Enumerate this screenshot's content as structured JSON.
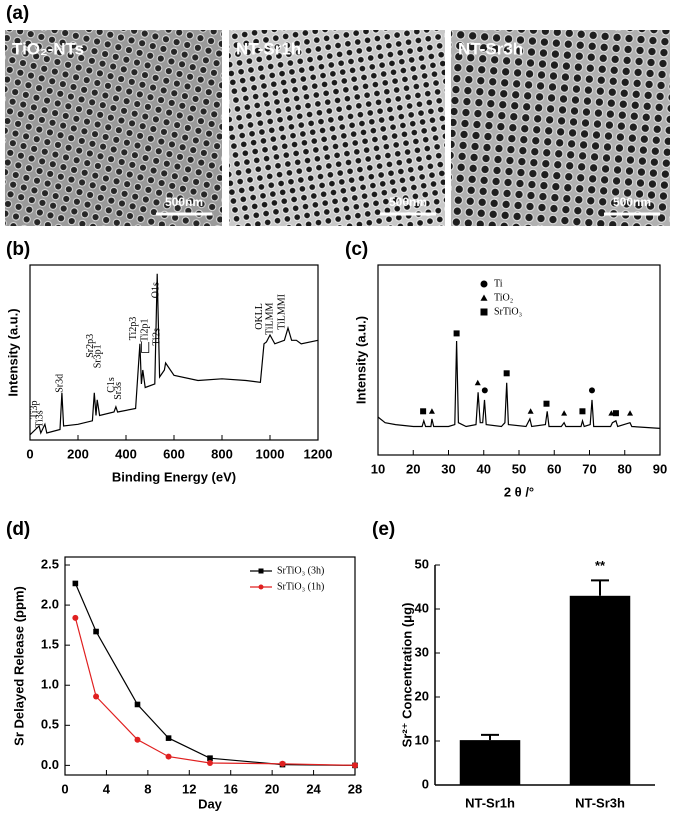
{
  "figure_a": {
    "panel_label": "(a)",
    "images": [
      {
        "label": "TiO₂-NTs",
        "scale_bar": "500nm"
      },
      {
        "label": "NT-Sr1h",
        "scale_bar": "500nm"
      },
      {
        "label": "NT-Sr3h",
        "scale_bar": "500nm"
      }
    ]
  },
  "chart_data": [
    {
      "type": "spectrum",
      "panel_label": "(b)",
      "x_label": "Binding Energy (eV)",
      "y_label": "Intensity (a.u.)",
      "x": [
        0,
        38,
        45,
        62,
        70,
        125,
        133,
        140,
        200,
        260,
        268,
        275,
        280,
        290,
        350,
        358,
        365,
        440,
        458,
        464,
        470,
        480,
        520,
        530,
        540,
        560,
        565,
        600,
        700,
        800,
        900,
        960,
        975,
        985,
        1000,
        1020,
        1060,
        1075,
        1090,
        1110,
        1130,
        1200
      ],
      "values": [
        3,
        8,
        4,
        9,
        4,
        6,
        27,
        8,
        9,
        11,
        27,
        14,
        23,
        14,
        16,
        19,
        16,
        18,
        55,
        32,
        40,
        30,
        32,
        95,
        36,
        40,
        44,
        37,
        34,
        35,
        34,
        33,
        55,
        56,
        60,
        55,
        57,
        64,
        57,
        57,
        55,
        57
      ],
      "color": "#000000",
      "xlim": [
        0,
        1200
      ],
      "xticks": [
        0,
        200,
        400,
        600,
        800,
        1000,
        1200
      ],
      "ylim": [
        0,
        100
      ],
      "peak_labels": [
        "Ti3p",
        "Ti3s",
        "Sr3d",
        "Sr2p3",
        "Sr3p1",
        "C1s",
        "Sr3s",
        "Ti2p3",
        "Ti2p1",
        "Ti2s",
        "O1s",
        "OKLL",
        "TiLMM",
        "TiLMMI"
      ]
    },
    {
      "type": "spectrum",
      "panel_label": "(c)",
      "x_label": "2 θ /°",
      "y_label": "Intensity (a.u.)",
      "x": [
        10,
        12,
        15,
        20,
        22.5,
        23,
        23.5,
        25,
        25.3,
        25.8,
        30,
        31.8,
        32.3,
        32.8,
        35,
        37.8,
        38.4,
        39,
        39.7,
        40.2,
        40.7,
        45,
        46,
        46.5,
        47,
        52,
        53.1,
        53.6,
        57.5,
        58,
        58.5,
        62,
        62.8,
        63.3,
        67.6,
        68,
        68.5,
        70.2,
        70.7,
        71.2,
        76,
        76.5,
        77.5,
        78,
        81.5,
        82,
        90
      ],
      "values": [
        20,
        17,
        16,
        15,
        15,
        18,
        15,
        15,
        19,
        15,
        15,
        16,
        60,
        17,
        15,
        16,
        33,
        17,
        17,
        29,
        16,
        15,
        17,
        38,
        16,
        15,
        19,
        15,
        16,
        23,
        15,
        15,
        17,
        15,
        15,
        18,
        15,
        16,
        29,
        15,
        15,
        17,
        18,
        15,
        17,
        15,
        14
      ],
      "color": "#000000",
      "xlim": [
        10,
        90
      ],
      "xticks": [
        10,
        20,
        30,
        40,
        50,
        60,
        70,
        80,
        90
      ],
      "ylim": [
        0,
        100
      ],
      "legend": [
        "Ti",
        "TiO₂",
        "SrTiO₃"
      ]
    },
    {
      "type": "line",
      "panel_label": "(d)",
      "x_label": "Day",
      "y_label": "Sr Delayed Release (ppm)",
      "x": [
        1,
        3,
        7,
        10,
        14,
        21,
        28
      ],
      "series": [
        {
          "name": "SrTiO₃ (3h)",
          "color": "#000000",
          "marker": "square",
          "values": [
            2.27,
            1.67,
            0.76,
            0.34,
            0.09,
            0.01,
            0.0
          ]
        },
        {
          "name": "SrTiO₃ (1h)",
          "color": "#e02020",
          "marker": "circle",
          "values": [
            1.84,
            0.86,
            0.32,
            0.11,
            0.03,
            0.02,
            0.0
          ]
        }
      ],
      "xlim": [
        0,
        28
      ],
      "xticks": [
        0,
        4,
        8,
        12,
        16,
        20,
        24,
        28
      ],
      "ylim": [
        -0.12,
        2.6
      ],
      "yticks": [
        {
          "value": 0,
          "label": "0.0"
        },
        0.5,
        {
          "value": 1,
          "label": "1.0"
        },
        1.5,
        {
          "value": 2,
          "label": "2.0"
        },
        2.5
      ],
      "legend_position": "upper right"
    },
    {
      "type": "bar",
      "panel_label": "(e)",
      "y_label": "Sr²⁺ Concentration (μg)",
      "categories": [
        "NT-Sr1h",
        "NT-Sr3h"
      ],
      "values": [
        10.2,
        43
      ],
      "errors": [
        1.2,
        3.5
      ],
      "color": "#000000",
      "ylim": [
        0,
        50
      ],
      "yticks": [
        0,
        10,
        20,
        30,
        40,
        50
      ],
      "annotation": "**"
    }
  ]
}
